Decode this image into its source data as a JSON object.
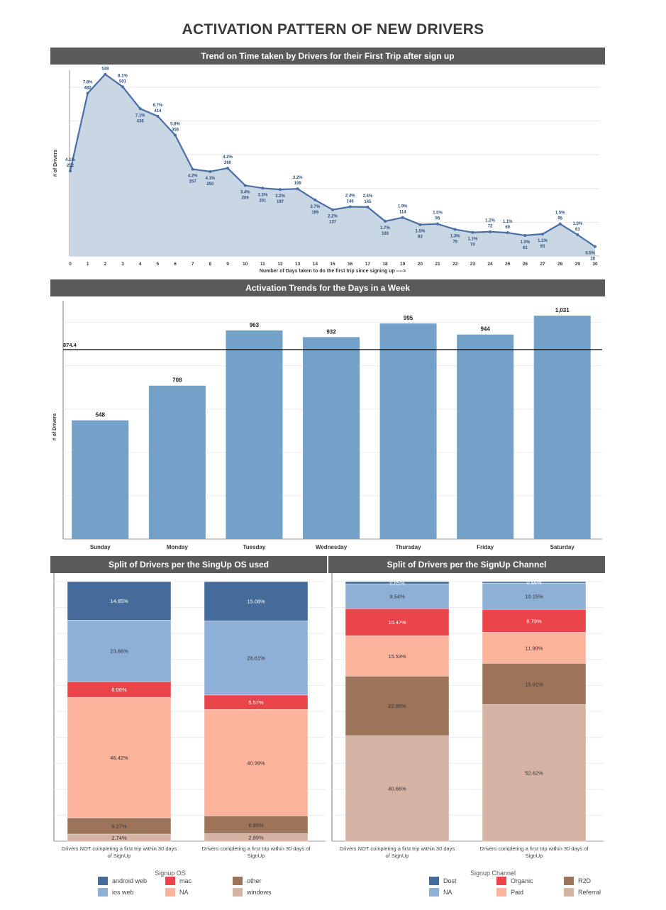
{
  "page": {
    "title": "ACTIVATION PATTERN OF NEW DRIVERS"
  },
  "colors": {
    "header_bg": "#5a5a5a",
    "line": "#4a6fa5",
    "area": "#c9d6e4",
    "bar": "#73a1c8",
    "android_web": "#456b9a",
    "ios_web": "#8fb0d6",
    "mac": "#e8444a",
    "na_os": "#fdb49c",
    "other": "#9b7459",
    "windows": "#d4b3a3",
    "dost": "#456b9a",
    "na_ch": "#8fb0d6",
    "organic": "#e8444a",
    "paid": "#fdb49c",
    "r2d": "#9b7459",
    "referral": "#d4b3a3"
  },
  "charts": {
    "line": {
      "header": "Trend on Time taken by Drivers for their First Trip after sign up"
    },
    "bar": {
      "header": "Activation Trends for the Days in a Week"
    },
    "os": {
      "header": "Split of Drivers per the SingUp OS used"
    },
    "channel": {
      "header": "Split of Drivers per the SignUp Channel"
    }
  },
  "chart_data": [
    {
      "type": "area",
      "title": "Trend on Time taken by Drivers for their First Trip after sign up",
      "xlabel": "Number of Days taken to do the first trip since signing up ---->",
      "ylabel": "# of Drivers",
      "ylim": [
        0,
        550
      ],
      "x": [
        0,
        1,
        2,
        3,
        4,
        5,
        6,
        7,
        8,
        9,
        10,
        11,
        12,
        13,
        14,
        15,
        16,
        17,
        18,
        19,
        20,
        21,
        22,
        23,
        24,
        25,
        26,
        27,
        28,
        29,
        30
      ],
      "values": [
        252,
        482,
        538,
        501,
        436,
        414,
        358,
        257,
        250,
        260,
        209,
        201,
        197,
        199,
        166,
        137,
        146,
        145,
        103,
        114,
        93,
        95,
        79,
        70,
        72,
        69,
        61,
        65,
        95,
        63,
        28
      ],
      "percent_labels": [
        "4.1%",
        "7.8%",
        "8.7%",
        "8.1%",
        "7.1%",
        "6.7%",
        "5.8%",
        "4.2%",
        "4.1%",
        "4.2%",
        "3.4%",
        "3.3%",
        "3.2%",
        "3.2%",
        "2.7%",
        "2.2%",
        "2.4%",
        "2.4%",
        "1.7%",
        "1.9%",
        "1.5%",
        "1.5%",
        "1.3%",
        "1.1%",
        "1.2%",
        "1.1%",
        "1.0%",
        "1.1%",
        "1.5%",
        "1.0%",
        "0.5%"
      ],
      "value_labels": [
        "252",
        "482",
        "538",
        "501",
        "436",
        "414",
        "358",
        "257",
        "250",
        "260",
        "209",
        "201",
        "197",
        "199",
        "166",
        "137",
        "146",
        "145",
        "103",
        "114",
        "93",
        "95",
        "79",
        "70",
        "72",
        "69",
        "61",
        "65",
        "95",
        "63",
        "28"
      ],
      "grid": true
    },
    {
      "type": "bar",
      "title": "Activation Trends for the Days in a Week",
      "ylabel": "# of Drivers",
      "categories": [
        "Sunday",
        "Monday",
        "Tuesday",
        "Wednesday",
        "Thursday",
        "Friday",
        "Saturday"
      ],
      "values": [
        548,
        708,
        963,
        932,
        995,
        944,
        1031
      ],
      "value_labels": [
        "548",
        "708",
        "963",
        "932",
        "995",
        "944",
        "1,031"
      ],
      "reference_line": {
        "value": 874.4,
        "label": "874.4"
      },
      "ylim": [
        0,
        1100
      ],
      "grid": true
    },
    {
      "type": "bar",
      "stacked": "percent",
      "title": "Split of Drivers per the SingUp OS used",
      "categories": [
        "Drivers NOT completing a first trip within 30 days of SignUp",
        "Drivers completing a first trip within 30 days of SignUp"
      ],
      "category_lines": [
        [
          "Drivers NOT completing a first trip within 30 days",
          "of SignUp"
        ],
        [
          "Drivers completing a first trip within 30 days of",
          "SignUp"
        ]
      ],
      "legend_title": "Signup OS",
      "series": [
        {
          "name": "windows",
          "color": "#d4b3a3",
          "values": [
            2.74,
            2.89
          ],
          "labels": [
            "2.74%",
            "2.89%"
          ]
        },
        {
          "name": "other",
          "color": "#9b7459",
          "values": [
            6.27,
            6.86
          ],
          "labels": [
            "6.27%",
            "6.86%"
          ]
        },
        {
          "name": "NA",
          "color": "#fdb49c",
          "values": [
            46.42,
            40.99
          ],
          "labels": [
            "46.42%",
            "40.99%"
          ]
        },
        {
          "name": "mac",
          "color": "#e8444a",
          "values": [
            6.06,
            5.57
          ],
          "labels": [
            "6.06%",
            "5.57%"
          ]
        },
        {
          "name": "ios web",
          "color": "#8fb0d6",
          "values": [
            23.66,
            28.61
          ],
          "labels": [
            "23.66%",
            "28.61%"
          ]
        },
        {
          "name": "android web",
          "color": "#456b9a",
          "values": [
            14.85,
            15.08
          ],
          "labels": [
            "14.85%",
            "15.08%"
          ]
        }
      ],
      "legend_items": [
        {
          "name": "android web",
          "color": "#456b9a"
        },
        {
          "name": "mac",
          "color": "#e8444a"
        },
        {
          "name": "other",
          "color": "#9b7459"
        },
        {
          "name": "ios web",
          "color": "#8fb0d6"
        },
        {
          "name": "NA",
          "color": "#fdb49c"
        },
        {
          "name": "windows",
          "color": "#d4b3a3"
        }
      ]
    },
    {
      "type": "bar",
      "stacked": "percent",
      "title": "Split of Drivers per the SignUp Channel",
      "categories": [
        "Drivers NOT completing a first trip within 30 days of SignUp",
        "Drivers completing a first trip within 30 days of SignUp"
      ],
      "category_lines": [
        [
          "Drivers NOT completing a first trip within 30 days",
          "of SignUp"
        ],
        [
          "Drivers completing a first trip within 30 days of",
          "SignUp"
        ]
      ],
      "legend_title": "Signup Channel",
      "series": [
        {
          "name": "Referral",
          "color": "#d4b3a3",
          "values": [
            40.66,
            52.62
          ],
          "labels": [
            "40.66%",
            "52.62%"
          ]
        },
        {
          "name": "R2D",
          "color": "#9b7459",
          "values": [
            22.95,
            15.91
          ],
          "labels": [
            "22.95%",
            "15.91%"
          ]
        },
        {
          "name": "Paid",
          "color": "#fdb49c",
          "values": [
            15.53,
            11.98
          ],
          "labels": [
            "15.53%",
            "11.98%"
          ]
        },
        {
          "name": "Organic",
          "color": "#e8444a",
          "values": [
            10.47,
            8.79
          ],
          "labels": [
            "10.47%",
            "8.79%"
          ]
        },
        {
          "name": "NA",
          "color": "#8fb0d6",
          "values": [
            9.54,
            10.15
          ],
          "labels": [
            "9.54%",
            "10.15%"
          ]
        },
        {
          "name": "Dost",
          "color": "#456b9a",
          "values": [
            0.85,
            0.56
          ],
          "labels": [
            "0.85%",
            "0.56%"
          ]
        }
      ],
      "legend_items": [
        {
          "name": "Dost",
          "color": "#456b9a"
        },
        {
          "name": "Organic",
          "color": "#e8444a"
        },
        {
          "name": "R2D",
          "color": "#9b7459"
        },
        {
          "name": "NA",
          "color": "#8fb0d6"
        },
        {
          "name": "Paid",
          "color": "#fdb49c"
        },
        {
          "name": "Referral",
          "color": "#d4b3a3"
        }
      ]
    }
  ]
}
